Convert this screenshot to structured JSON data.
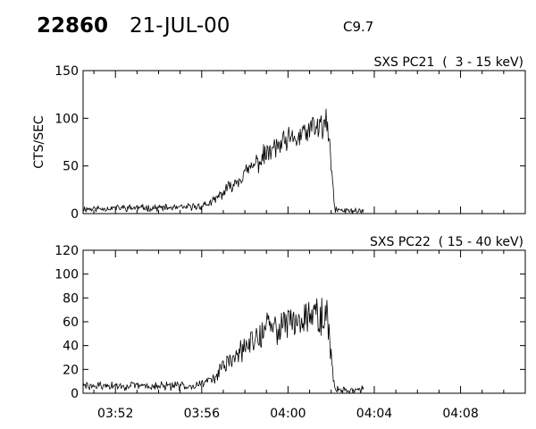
{
  "header": {
    "event_id": "22860",
    "date": "21-JUL-00",
    "flare_class": "C9.7"
  },
  "chart_data": [
    {
      "type": "line",
      "title": "SXS PC21  (  3 - 15 keV)",
      "ylabel": "CTS/SEC",
      "xlabel": "",
      "x_unit": "minutes",
      "xlim": [
        "03:50:30",
        "04:11:00"
      ],
      "ylim": [
        0,
        150
      ],
      "yticks": [
        0,
        50,
        100,
        150
      ],
      "xticks": [
        "03:52",
        "03:56",
        "04:00",
        "04:04",
        "04:08"
      ],
      "x_tick_labels_shown": false,
      "grid": false,
      "series": [
        {
          "x": [
            "03:50:30",
            "03:51:00",
            "03:52:00",
            "03:53:00",
            "03:54:00",
            "03:55:00",
            "03:55:30",
            "03:56:00",
            "03:56:30",
            "03:57:00",
            "03:57:30",
            "03:58:00",
            "03:58:30",
            "03:59:00",
            "03:59:30",
            "04:00:00",
            "04:00:30",
            "04:01:00",
            "04:01:30",
            "04:01:50",
            "04:02:00",
            "04:02:10",
            "04:02:30",
            "04:03:00",
            "04:03:30"
          ],
          "y": [
            5,
            5,
            6,
            6,
            6,
            6,
            7,
            8,
            12,
            22,
            32,
            42,
            52,
            62,
            70,
            75,
            80,
            87,
            92,
            92,
            50,
            5,
            3,
            3,
            3
          ]
        }
      ]
    },
    {
      "type": "line",
      "title": "SXS PC22  ( 15 - 40 keV)",
      "ylabel": "",
      "xlabel": "",
      "x_unit": "minutes",
      "xlim": [
        "03:50:30",
        "04:11:00"
      ],
      "ylim": [
        0,
        120
      ],
      "yticks": [
        0,
        20,
        40,
        60,
        80,
        100,
        120
      ],
      "xticks": [
        "03:52",
        "03:56",
        "04:00",
        "04:04",
        "04:08"
      ],
      "x_tick_labels_shown": true,
      "grid": false,
      "series": [
        {
          "x": [
            "03:50:30",
            "03:51:00",
            "03:52:00",
            "03:53:00",
            "03:54:00",
            "03:55:00",
            "03:55:30",
            "03:56:00",
            "03:56:30",
            "03:57:00",
            "03:57:30",
            "03:58:00",
            "03:58:30",
            "03:59:00",
            "03:59:30",
            "04:00:00",
            "04:00:30",
            "04:01:00",
            "04:01:30",
            "04:01:50",
            "04:02:00",
            "04:02:10",
            "04:02:30",
            "04:03:00",
            "04:03:30"
          ],
          "y": [
            6,
            6,
            6,
            6,
            6,
            6,
            7,
            8,
            12,
            22,
            30,
            38,
            46,
            54,
            56,
            60,
            62,
            68,
            66,
            62,
            30,
            4,
            3,
            3,
            3
          ]
        }
      ]
    }
  ]
}
